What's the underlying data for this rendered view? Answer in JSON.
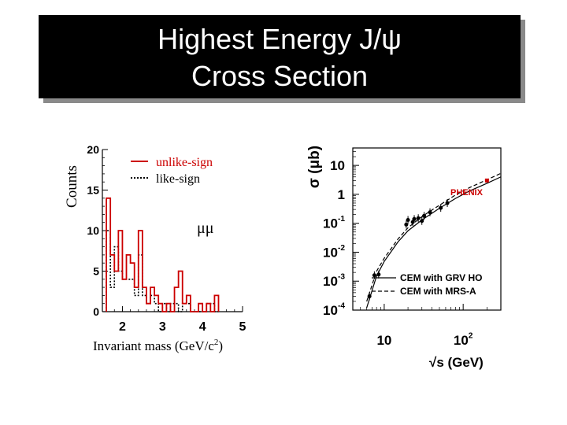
{
  "slide": {
    "title_line1": "Highest Energy J/ψ",
    "title_line2": "Cross Section"
  },
  "colors": {
    "unlike": "#cc0000",
    "like": "#000000",
    "phenix": "#cc0000",
    "title_bg": "#000000",
    "title_fg": "#ffffff"
  },
  "chart_data": [
    {
      "type": "histogram",
      "title": "",
      "xlabel": "Invariant mass (GeV/c",
      "xlabel_sup": "2",
      "xlabel_end": ")",
      "ylabel": "Counts",
      "xlim": [
        1.5,
        5
      ],
      "ylim": [
        0,
        20
      ],
      "x_ticks": [
        "2",
        "3",
        "4",
        "5"
      ],
      "y_ticks": [
        "0",
        "5",
        "10",
        "15",
        "20"
      ],
      "annotation": "μμ",
      "legend": [
        {
          "label": "unlike-sign",
          "style": "solid",
          "color": "#cc0000"
        },
        {
          "label": "like-sign",
          "style": "dotted",
          "color": "#000000"
        }
      ],
      "bin_edges": [
        1.6,
        1.7,
        1.8,
        1.9,
        2.0,
        2.1,
        2.2,
        2.3,
        2.4,
        2.5,
        2.6,
        2.7,
        2.8,
        2.9,
        3.0,
        3.1,
        3.2,
        3.3,
        3.4,
        3.5,
        3.6,
        3.7,
        3.8,
        3.9,
        4.0,
        4.1,
        4.2,
        4.3,
        4.4
      ],
      "series": [
        {
          "name": "unlike-sign",
          "values": [
            14,
            7,
            5,
            10,
            4,
            7,
            6,
            3,
            10,
            3,
            1,
            3,
            2,
            1,
            0,
            1,
            0,
            3,
            5,
            1,
            2,
            0,
            0,
            1,
            0,
            1,
            0,
            2
          ]
        },
        {
          "name": "like-sign",
          "values": [
            10,
            3,
            8,
            5,
            4,
            4,
            4,
            2,
            7,
            2,
            1,
            2,
            1,
            0,
            1,
            0,
            1,
            1,
            0,
            1,
            1,
            0,
            0,
            0,
            0,
            1,
            1,
            0
          ]
        }
      ]
    },
    {
      "type": "scatter",
      "title": "",
      "xlabel": "√s (GeV)",
      "ylabel": "σ (μb)",
      "xscale": "log",
      "yscale": "log",
      "xlim": [
        4,
        300
      ],
      "ylim": [
        0.0001,
        40
      ],
      "x_ticks": [
        {
          "base": "10",
          "exp": ""
        },
        {
          "base": "10",
          "exp": "2"
        }
      ],
      "y_ticks": [
        {
          "base": "10",
          "exp": ""
        },
        {
          "base": "1",
          "exp": ""
        },
        {
          "base": "10",
          "exp": "-1"
        },
        {
          "base": "10",
          "exp": "-2"
        },
        {
          "base": "10",
          "exp": "-3"
        },
        {
          "base": "10",
          "exp": "-4"
        }
      ],
      "legend": [
        {
          "label": "CEM with GRV HO",
          "style": "solid"
        },
        {
          "label": "CEM with MRS-A",
          "style": "dashed"
        }
      ],
      "series": [
        {
          "name": "",
          "x": [
            6.5,
            7.5,
            8.5,
            19,
            20,
            23,
            24,
            27,
            30,
            32,
            38,
            52,
            63
          ],
          "y": [
            0.0003,
            0.0016,
            0.0017,
            0.09,
            0.13,
            0.11,
            0.14,
            0.15,
            0.12,
            0.18,
            0.24,
            0.34,
            0.5
          ]
        },
        {
          "name": "PHENIX",
          "x": [
            200
          ],
          "y": [
            3.0
          ]
        }
      ],
      "curves": [
        {
          "name": "CEM with GRV HO",
          "x": [
            6,
            8,
            10,
            15,
            20,
            30,
            50,
            80,
            120,
            200,
            300
          ],
          "y": [
            0.00012,
            0.0015,
            0.0048,
            0.023,
            0.055,
            0.13,
            0.33,
            0.72,
            1.3,
            2.4,
            4.0
          ]
        },
        {
          "name": "CEM with MRS-A",
          "x": [
            6,
            8,
            10,
            15,
            20,
            30,
            50,
            80,
            120,
            200,
            300
          ],
          "y": [
            0.0002,
            0.0022,
            0.0062,
            0.029,
            0.07,
            0.17,
            0.42,
            0.95,
            1.7,
            3.2,
            5.3
          ]
        }
      ]
    }
  ]
}
